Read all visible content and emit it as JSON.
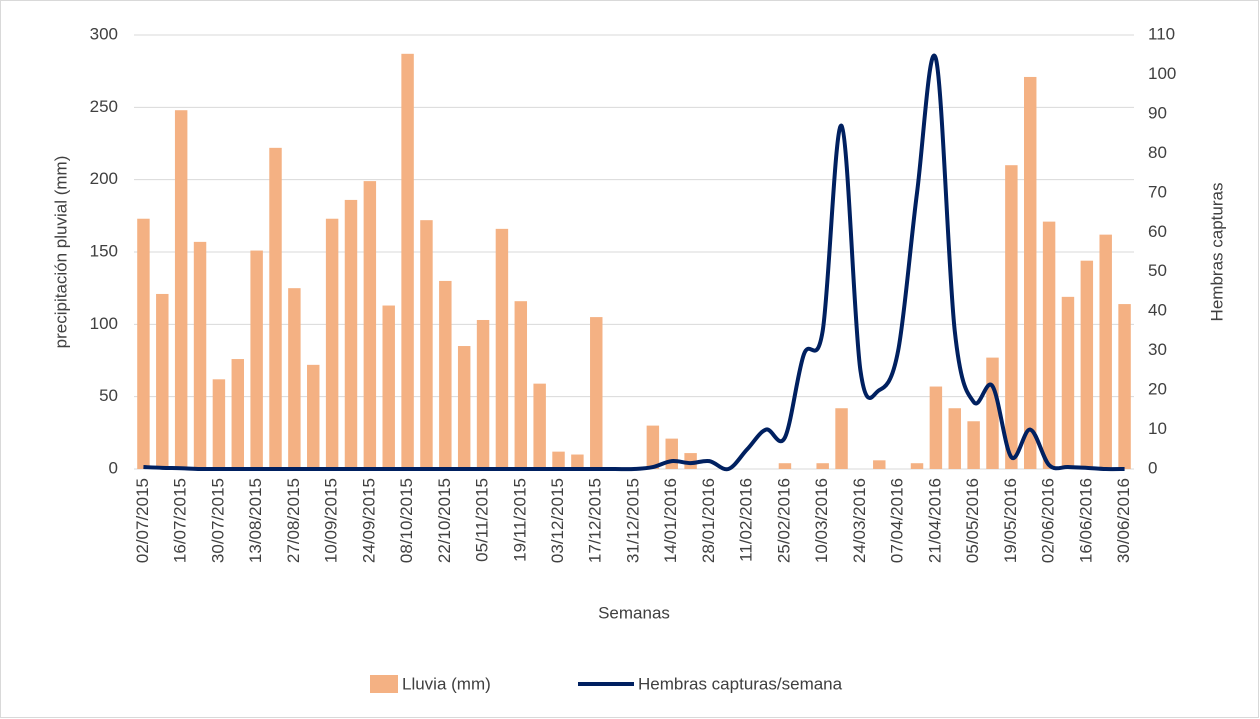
{
  "chart_data": {
    "type": "bar-line",
    "x_label": "Semanas",
    "y_label": "precipitación pluvial (mm)",
    "y2_label": "Hembras capturas",
    "categories": [
      "02/07/2015",
      null,
      "16/07/2015",
      null,
      "30/07/2015",
      null,
      "13/08/2015",
      null,
      "27/08/2015",
      null,
      "10/09/2015",
      null,
      "24/09/2015",
      null,
      "08/10/2015",
      null,
      "22/10/2015",
      null,
      "05/11/2015",
      null,
      "19/11/2015",
      null,
      "03/12/2015",
      null,
      "17/12/2015",
      null,
      "31/12/2015",
      null,
      "14/01/2016",
      null,
      "28/01/2016",
      null,
      "11/02/2016",
      null,
      "25/02/2016",
      null,
      "10/03/2016",
      null,
      "24/03/2016",
      null,
      "07/04/2016",
      null,
      "21/04/2016",
      null,
      "05/05/2016",
      null,
      "19/05/2016",
      null,
      "02/06/2016",
      null,
      "16/06/2016",
      null,
      "30/06/2016"
    ],
    "series": [
      {
        "name": "Lluvia (mm)",
        "type": "bar",
        "color": "#f4b183",
        "values": [
          173,
          121,
          248,
          157,
          62,
          76,
          151,
          222,
          125,
          72,
          173,
          186,
          199,
          113,
          287,
          172,
          130,
          85,
          103,
          166,
          116,
          59,
          12,
          10,
          105,
          0,
          0,
          30,
          21,
          11,
          0,
          0,
          0,
          0,
          4,
          0,
          4,
          42,
          0,
          6,
          0,
          4,
          57,
          42,
          33,
          77,
          210,
          271,
          171,
          119,
          144,
          162,
          114
        ]
      },
      {
        "name": "Hembras capturas/semana",
        "type": "line",
        "axis": "y2",
        "color": "#002060",
        "values": [
          0.5,
          0.3,
          0.2,
          0,
          0,
          0,
          0,
          0,
          0,
          0,
          0,
          0,
          0,
          0,
          0,
          0,
          0,
          0,
          0,
          0,
          0,
          0,
          0,
          0,
          0,
          0,
          0,
          0.5,
          2,
          1.5,
          2,
          0,
          5,
          10,
          8,
          29,
          35,
          87,
          25,
          20,
          30,
          70,
          104,
          35,
          17,
          21,
          3,
          10,
          1,
          0.5,
          0.3,
          0,
          0
        ]
      }
    ],
    "ylim": [
      0,
      300
    ],
    "yticks": [
      0,
      50,
      100,
      150,
      200,
      250,
      300
    ],
    "y2lim": [
      0,
      110
    ],
    "y2ticks": [
      0,
      10,
      20,
      30,
      40,
      50,
      60,
      70,
      80,
      90,
      100,
      110
    ],
    "grid": true,
    "legend": "bottom"
  }
}
